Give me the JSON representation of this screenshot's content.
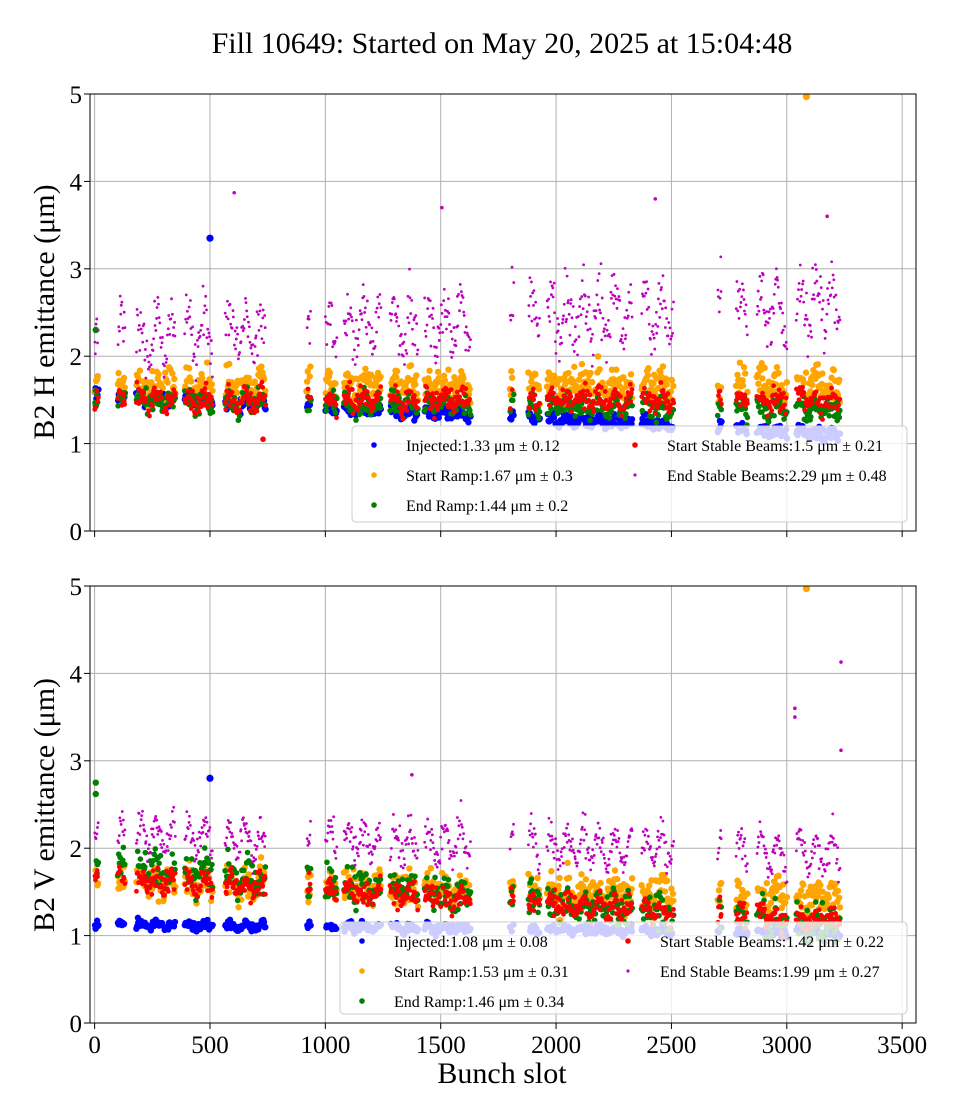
{
  "figure": {
    "title": "Fill 10649: Started on May 20, 2025 at 15:04:48",
    "xlabel": "Bunch slot"
  },
  "colors": {
    "injected": "#0000ff",
    "start_ramp": "#ffa500",
    "end_ramp": "#008000",
    "start_stable": "#ff0000",
    "end_stable": "#bf00bf",
    "grid": "#b0b0b0"
  },
  "chart_data": [
    {
      "type": "scatter",
      "ylabel": "B2 H emittance (μm)",
      "xlim": [
        -20,
        3560
      ],
      "ylim": [
        0,
        5
      ],
      "xticks": [
        0,
        500,
        1000,
        1500,
        2000,
        2500,
        3000,
        3500
      ],
      "yticks": [
        0,
        1,
        2,
        3,
        4,
        5
      ],
      "show_xtick_labels": false,
      "grid": true,
      "legend_position": "lower-right",
      "series": [
        {
          "name": "Injected:1.33 μm ± 0.12",
          "color": "#0000ff",
          "mean": 1.33,
          "std": 0.12,
          "trend": -0.22,
          "amp": 0.06,
          "dot": 3.2,
          "density": 0.85,
          "outliers": [
            [
              500,
              3.35
            ]
          ]
        },
        {
          "name": "Start Ramp:1.67 μm ± 0.3",
          "color": "#ffa500",
          "mean": 1.67,
          "std": 0.3,
          "trend": 0.0,
          "amp": 0.14,
          "dot": 3.2,
          "density": 0.85,
          "outliers": [
            [
              3085,
              4.97
            ],
            [
              920,
              1.6
            ]
          ]
        },
        {
          "name": "End Ramp:1.44 μm ± 0.2",
          "color": "#008000",
          "mean": 1.44,
          "std": 0.2,
          "trend": -0.05,
          "amp": 0.12,
          "dot": 2.8,
          "density": 0.8,
          "outliers": [
            [
              5,
              2.3
            ],
            [
              5,
              1.43
            ]
          ]
        },
        {
          "name": "Start Stable Beams:1.5 μm ± 0.21",
          "color": "#ff0000",
          "mean": 1.5,
          "std": 0.21,
          "trend": 0.0,
          "amp": 0.12,
          "dot": 2.4,
          "density": 0.85,
          "outliers": [
            [
              730,
              1.05
            ]
          ]
        },
        {
          "name": "End Stable Beams:2.29 μm ± 0.48",
          "color": "#bf00bf",
          "mean": 2.29,
          "std": 0.48,
          "trend": 0.2,
          "amp": 0.55,
          "dot": 1.4,
          "density": 1.0,
          "outliers": [
            [
              605,
              3.87
            ],
            [
              1505,
              3.7
            ],
            [
              2430,
              3.8
            ],
            [
              3175,
              3.6
            ]
          ]
        }
      ]
    },
    {
      "type": "scatter",
      "ylabel": "B2 V emittance (μm)",
      "xlim": [
        -20,
        3560
      ],
      "ylim": [
        0,
        5
      ],
      "xticks": [
        0,
        500,
        1000,
        1500,
        2000,
        2500,
        3000,
        3500
      ],
      "yticks": [
        0,
        1,
        2,
        3,
        4,
        5
      ],
      "show_xtick_labels": true,
      "grid": true,
      "legend_position": "lower-right",
      "series": [
        {
          "name": "Injected:1.08 μm ± 0.08",
          "color": "#0000ff",
          "mean": 1.08,
          "std": 0.08,
          "trend": -0.05,
          "amp": 0.05,
          "dot": 3.2,
          "density": 0.85,
          "outliers": [
            [
              500,
              2.8
            ]
          ]
        },
        {
          "name": "Start Ramp:1.53 μm ± 0.31",
          "color": "#ffa500",
          "mean": 1.53,
          "std": 0.31,
          "trend": -0.1,
          "amp": 0.13,
          "dot": 3.2,
          "density": 0.85,
          "outliers": [
            [
              3085,
              4.97
            ]
          ]
        },
        {
          "name": "End Ramp:1.46 μm ± 0.34",
          "color": "#008000",
          "mean": 1.46,
          "std": 0.34,
          "trend": -0.35,
          "amp": 0.12,
          "dot": 2.8,
          "density": 0.8,
          "outliers": [
            [
              5,
              2.75
            ],
            [
              5,
              2.62
            ]
          ]
        },
        {
          "name": "Start Stable Beams:1.42 μm ± 0.22",
          "color": "#ff0000",
          "mean": 1.42,
          "std": 0.22,
          "trend": -0.25,
          "amp": 0.12,
          "dot": 2.4,
          "density": 0.85,
          "outliers": []
        },
        {
          "name": "End Stable Beams:1.99 μm ± 0.27",
          "color": "#bf00bf",
          "mean": 1.99,
          "std": 0.27,
          "trend": -0.1,
          "amp": 0.35,
          "dot": 1.4,
          "density": 1.0,
          "outliers": [
            [
              3035,
              3.6
            ],
            [
              3035,
              3.5
            ],
            [
              3235,
              4.13
            ],
            [
              3235,
              3.12
            ],
            [
              1375,
              2.84
            ]
          ]
        }
      ]
    }
  ],
  "bunch_trains": [
    [
      0,
      15
    ],
    [
      100,
      130
    ],
    [
      180,
      350
    ],
    [
      390,
      510
    ],
    [
      565,
      740
    ],
    [
      920,
      935
    ],
    [
      1000,
      1050
    ],
    [
      1080,
      1240
    ],
    [
      1280,
      1400
    ],
    [
      1430,
      1630
    ],
    [
      1800,
      1815
    ],
    [
      1880,
      1930
    ],
    [
      1960,
      2330
    ],
    [
      2370,
      2510
    ],
    [
      2700,
      2715
    ],
    [
      2780,
      2830
    ],
    [
      2870,
      3000
    ],
    [
      3040,
      3230
    ]
  ]
}
